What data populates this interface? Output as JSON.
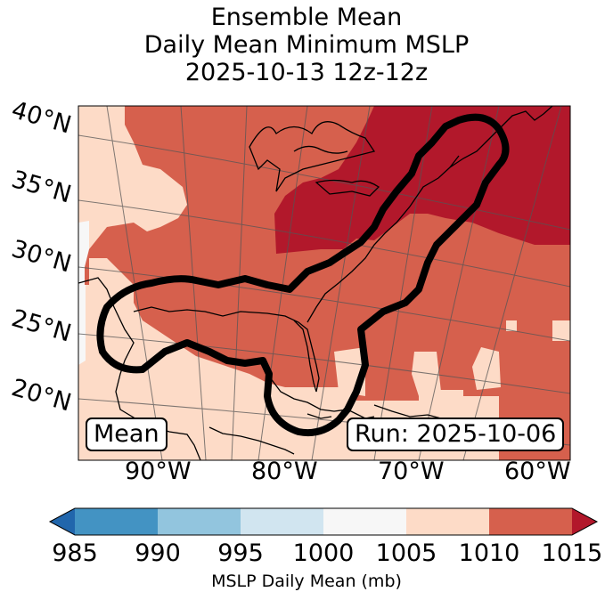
{
  "title": {
    "line1": "Ensemble Mean",
    "line2": "Daily Mean Minimum MSLP",
    "line3": "2025-10-13 12z-12z"
  },
  "map": {
    "lat_labels": [
      "40°N",
      "35°N",
      "30°N",
      "25°N",
      "20°N"
    ],
    "lon_labels": [
      "90°W",
      "80°W",
      "70°W",
      "60°W"
    ],
    "mean_label": "Mean",
    "run_label": "Run: 2025-10-06"
  },
  "colorbar": {
    "ticks": [
      "985",
      "990",
      "995",
      "1000",
      "1005",
      "1010",
      "1015"
    ],
    "label": "MSLP Daily Mean (mb)",
    "colors": [
      "#2166ac",
      "#4393c3",
      "#92c5de",
      "#d1e5f0",
      "#f7f7f7",
      "#fddbc7",
      "#d6604d",
      "#b2182b"
    ]
  },
  "fill_colors": {
    "band_1000_1005": "#f7f7f7",
    "band_1005_1010": "#fddbc7",
    "band_1010_1015": "#d6604d",
    "band_gt_1015": "#b2182b",
    "outline": "#000000"
  }
}
